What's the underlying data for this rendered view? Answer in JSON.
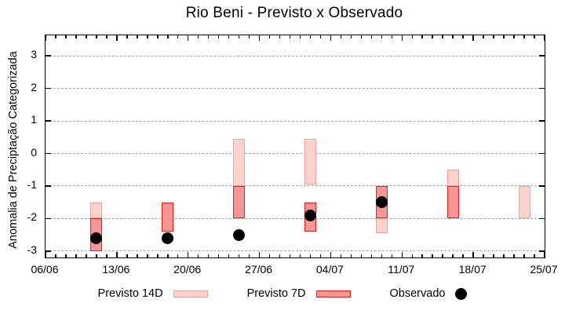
{
  "title": "Rio Beni - Previsto x Observado",
  "y_axis_label": "Anomalia de Preciptação Categorizada",
  "legend": {
    "previsto14_label": "Previsto 14D",
    "previsto7_label": "Previsto 7D",
    "observado_label": "Observado"
  },
  "colors": {
    "previsto14_fill": "#fcd2cc",
    "previsto14_border": "#f2a49c",
    "previsto7_fill": "#f79694",
    "previsto7_border": "#e2211c",
    "observado": "#000000",
    "grid": "#a3a3a3",
    "axis": "#000000",
    "background": "#ffffff"
  },
  "chart_data": {
    "type": "bar",
    "title": "Rio Beni - Previsto x Observado",
    "xlabel": "",
    "ylabel": "Anomalia de Preciptação Categorizada",
    "x_tick_labels": [
      "06/06",
      "13/06",
      "20/06",
      "27/06",
      "04/07",
      "11/07",
      "18/07",
      "25/07"
    ],
    "x_tick_days": [
      0,
      7,
      14,
      21,
      28,
      35,
      42,
      49
    ],
    "x_minor_tick_every_days": 1,
    "xlim_days": [
      0,
      49
    ],
    "y_tick_values": [
      3,
      2,
      1,
      0,
      -1,
      -2,
      -3
    ],
    "y_tick_labels": [
      "3",
      "2",
      "1",
      "0",
      "-1",
      "-2",
      "-3"
    ],
    "ylim": [
      -3.19,
      3.63
    ],
    "grid": "horizontal-dashed",
    "legend_position": "bottom",
    "series": [
      {
        "name": "Previsto 14D",
        "type": "range-bar",
        "points": [
          {
            "date": "11/06",
            "day": 5,
            "low": -2.0,
            "high": -1.5
          },
          {
            "date": "25/06",
            "day": 19,
            "low": -1.0,
            "high": 0.45
          },
          {
            "date": "02/07",
            "day": 26,
            "low": -0.95,
            "high": 0.45
          },
          {
            "date": "09/07",
            "day": 33,
            "low": -2.45,
            "high": -2.0
          },
          {
            "date": "16/07",
            "day": 40,
            "low": -1.0,
            "high": -0.5
          },
          {
            "date": "23/07",
            "day": 47,
            "low": -2.0,
            "high": -1.0
          }
        ]
      },
      {
        "name": "Previsto 7D",
        "type": "range-bar",
        "points": [
          {
            "date": "11/06",
            "day": 5,
            "low": -3.0,
            "high": -2.0
          },
          {
            "date": "18/06",
            "day": 12,
            "low": -2.4,
            "high": -1.5
          },
          {
            "date": "25/06",
            "day": 19,
            "low": -2.0,
            "high": -1.0
          },
          {
            "date": "02/07",
            "day": 26,
            "low": -2.4,
            "high": -1.5
          },
          {
            "date": "09/07",
            "day": 33,
            "low": -2.0,
            "high": -1.0
          },
          {
            "date": "16/07",
            "day": 40,
            "low": -2.0,
            "high": -1.0
          }
        ]
      },
      {
        "name": "Observado",
        "type": "scatter",
        "points": [
          {
            "date": "11/06",
            "day": 5,
            "value": -2.6
          },
          {
            "date": "18/06",
            "day": 12,
            "value": -2.6
          },
          {
            "date": "25/06",
            "day": 19,
            "value": -2.5
          },
          {
            "date": "02/07",
            "day": 26,
            "value": -1.9
          },
          {
            "date": "09/07",
            "day": 33,
            "value": -1.5
          }
        ]
      }
    ]
  }
}
